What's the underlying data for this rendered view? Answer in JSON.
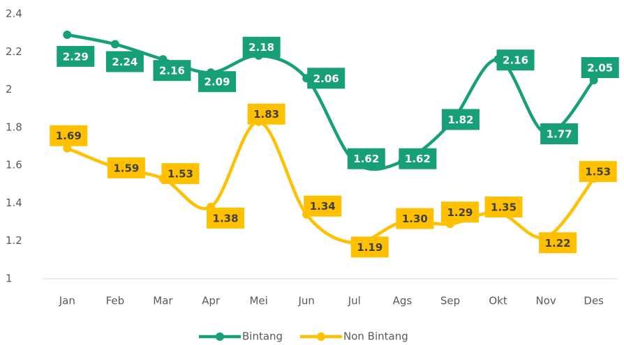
{
  "chart_data": {
    "type": "line",
    "categories": [
      "Jan",
      "Feb",
      "Mar",
      "Apr",
      "Mei",
      "Jun",
      "Jul",
      "Ags",
      "Sep",
      "Okt",
      "Nov",
      "Des"
    ],
    "series": [
      {
        "name": "Bintang",
        "color": "#17a078",
        "values": [
          2.29,
          2.24,
          2.16,
          2.09,
          2.18,
          2.06,
          1.62,
          1.62,
          1.82,
          2.16,
          1.77,
          2.05
        ],
        "value_labels": [
          "2.29",
          "2.24",
          "2.16",
          "2.09",
          "2.18",
          "2.06",
          "1.62",
          "1.62",
          "1.82",
          "2.16",
          "1.77",
          "2.05"
        ]
      },
      {
        "name": "Non Bintang",
        "color": "#ffc000",
        "values": [
          1.69,
          1.59,
          1.53,
          1.38,
          1.83,
          1.34,
          1.19,
          1.3,
          1.29,
          1.35,
          1.22,
          1.53
        ],
        "value_labels": [
          "1.69",
          "1.59",
          "1.53",
          "1.38",
          "1.83",
          "1.34",
          "1.19",
          "1.30",
          "1.29",
          "1.35",
          "1.22",
          "1.53"
        ]
      }
    ],
    "ylim": [
      1,
      2.4
    ],
    "yticks": [
      1,
      1.2,
      1.4,
      1.6,
      1.8,
      2,
      2.2,
      2.4
    ],
    "grid": false,
    "smooth": true,
    "legend": "bottom"
  }
}
